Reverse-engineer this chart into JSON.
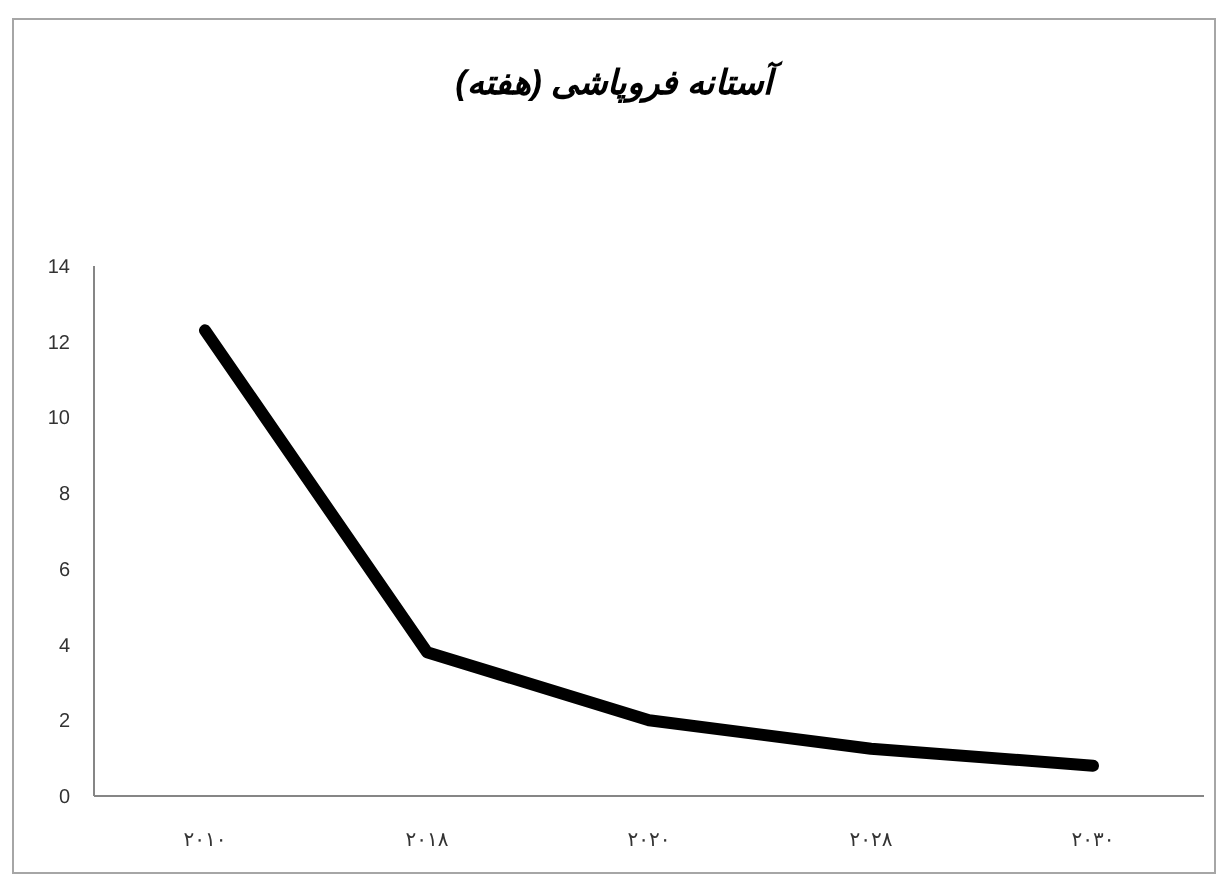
{
  "chart_data": {
    "type": "line",
    "title": "آستانه فروپاشی (هفته)",
    "categories": [
      "۲۰۱۰",
      "۲۰۱۸",
      "۲۰۲۰",
      "۲۰۲۸",
      "۲۰۳۰"
    ],
    "series": [
      {
        "color": "#000000",
        "values": [
          12.3,
          3.8,
          2.0,
          1.25,
          0.8
        ]
      }
    ],
    "ylim": [
      0,
      14
    ],
    "yticks": [
      0,
      2,
      4,
      6,
      8,
      10,
      12,
      14
    ],
    "grid": false,
    "marker": "none",
    "line_style": "solid"
  }
}
